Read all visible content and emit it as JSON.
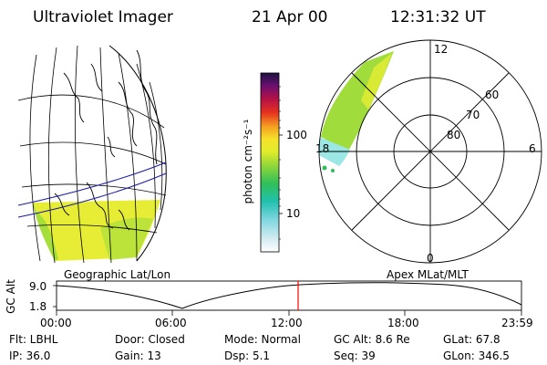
{
  "header": {
    "instrument": "Ultraviolet Imager",
    "date": "21 Apr 00",
    "time": "12:31:32 UT"
  },
  "colorbar": {
    "axis_label": "photon cm⁻²s⁻¹",
    "ticks": [
      "100",
      "10"
    ]
  },
  "maps": {
    "left_label": "Geographic Lat/Lon",
    "right_label": "Apex MLat/MLT"
  },
  "polar": {
    "mlt_labels": {
      "top": "12",
      "left": "18",
      "right": "6",
      "bottom": "0"
    },
    "lat_labels": [
      "60",
      "70",
      "80"
    ]
  },
  "altitude_plot": {
    "ylabel": "GC Alt",
    "yticks": [
      "9.0",
      "1.8"
    ],
    "xticks": [
      "00:00",
      "06:00",
      "12:00",
      "18:00",
      "23:59"
    ]
  },
  "status": {
    "row1": {
      "filter": "Flt: LBHL",
      "door": "Door: Closed",
      "mode": "Mode: Normal",
      "gc_alt": "GC Alt: 8.6 Re",
      "glat": "GLat:  67.8"
    },
    "row2": {
      "ip": "IP: 36.0",
      "gain": "Gain: 13",
      "dsp": "Dsp:     5.1",
      "seq": "Seq: 39",
      "glon": "GLon: 346.5"
    }
  },
  "colors": {
    "auroral_yellow": "#e6ec2a",
    "auroral_green": "#9fdc3c",
    "auroral_cyan": "#9be7e6",
    "current_time_marker": "#ff0000",
    "orbit_line": "#1a1aa8"
  }
}
